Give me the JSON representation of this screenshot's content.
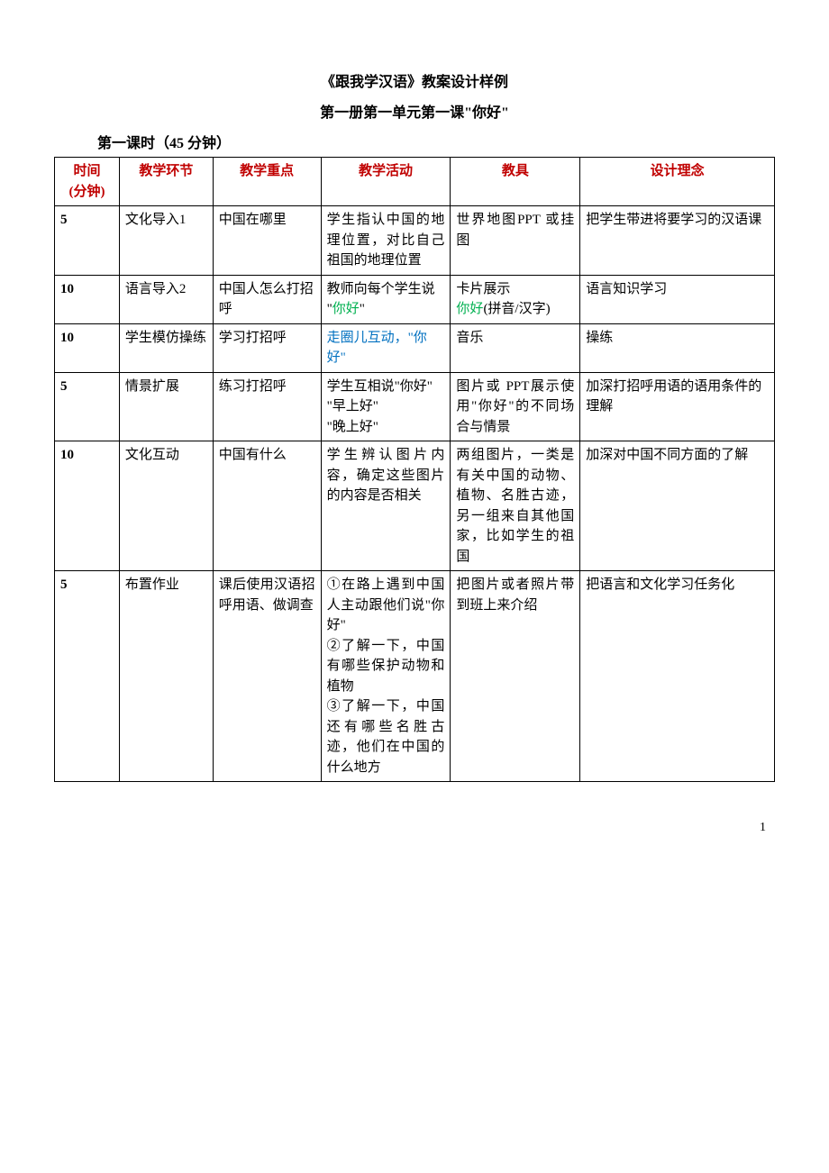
{
  "document": {
    "title_main": "《跟我学汉语》教案设计样例",
    "title_sub": "第一册第一单元第一课\"你好\"",
    "period_title": "第一课时（45 分钟）",
    "page_number": "1"
  },
  "table": {
    "headers": {
      "time": "时间\n(分钟)",
      "stage": "教学环节",
      "focus": "教学重点",
      "activity": "教学活动",
      "props": "教具",
      "rationale": "设计理念"
    },
    "rows": [
      {
        "time": "5",
        "stage": "文化导入1",
        "focus": "中国在哪里",
        "activity": "学生指认中国的地理位置，对比自己祖国的地理位置",
        "props": "世界地图PPT 或挂图",
        "rationale": "把学生带进将要学习的汉语课"
      },
      {
        "time": "10",
        "stage": "语言导入2",
        "focus": "中国人怎么打招呼",
        "activity_pre": "教师向每个学生说\n\"",
        "activity_green": "你好",
        "activity_post": "\"",
        "props_pre": "卡片展示\n",
        "props_green": "你好",
        "props_post": "(拼音/汉字)",
        "rationale": "语言知识学习"
      },
      {
        "time": "10",
        "stage": "学生模仿操练",
        "focus": "学习打招呼",
        "activity_blue": "走圈儿互动，\"你好\"",
        "props": "音乐",
        "rationale": "操练"
      },
      {
        "time": "5",
        "stage": "情景扩展",
        "focus": "练习打招呼",
        "activity": "学生互相说\"你好\"\n\"早上好\"\n\"晚上好\"",
        "props": "图片或 PPT展示使用\"你好\"的不同场合与情景",
        "rationale": "加深打招呼用语的语用条件的理解"
      },
      {
        "time": "10",
        "stage": "文化互动",
        "focus": "中国有什么",
        "activity": "学生辨认图片内容，确定这些图片的内容是否相关",
        "props": "两组图片，一类是有关中国的动物、植物、名胜古迹，另一组来自其他国家，比如学生的祖国",
        "rationale": "加深对中国不同方面的了解"
      },
      {
        "time": "5",
        "stage": "布置作业",
        "focus": "课后使用汉语招呼用语、做调查",
        "activity": "①在路上遇到中国人主动跟他们说\"你好\"\n②了解一下，中国有哪些保护动物和植物\n③了解一下，中国还有哪些名胜古迹，他们在中国的什么地方",
        "props": "把图片或者照片带到班上来介绍",
        "rationale": "把语言和文化学习任务化"
      }
    ]
  }
}
